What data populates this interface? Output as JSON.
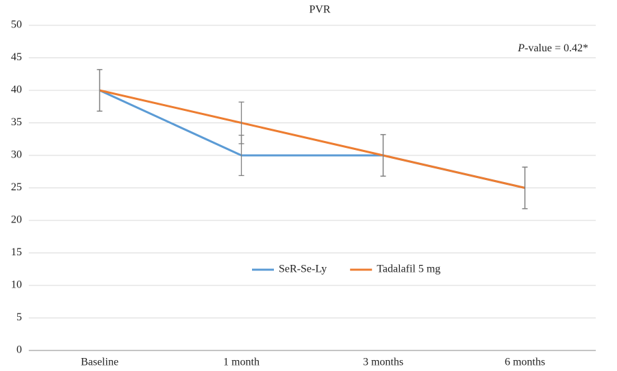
{
  "chart_data": {
    "type": "line",
    "title": "PVR",
    "annotation": "P-value = 0.42*",
    "categories": [
      "Baseline",
      "1 month",
      "3 months",
      "6 months"
    ],
    "series": [
      {
        "name": "SeR-Se-Ly",
        "color": "#5b9bd5",
        "values": [
          40,
          30,
          30,
          25
        ],
        "error": [
          3.2,
          3.1,
          3.2,
          3.2
        ]
      },
      {
        "name": "Tadalafil 5 mg",
        "color": "#ed7d31",
        "values": [
          40,
          35,
          30,
          25
        ],
        "error": [
          3.2,
          3.2,
          3.2,
          3.2
        ]
      }
    ],
    "ylim": [
      0,
      50
    ],
    "yticks": [
      0,
      5,
      10,
      15,
      20,
      25,
      30,
      35,
      40,
      45,
      50
    ],
    "grid": true,
    "legend": "center"
  }
}
